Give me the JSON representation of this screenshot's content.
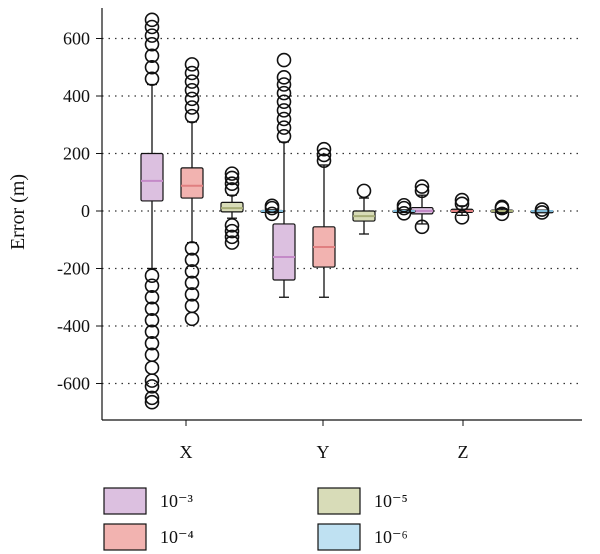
{
  "chart_data": {
    "type": "boxplot",
    "title": "",
    "ylabel": "Error (m)",
    "xlabel": "",
    "ylim": [
      -740,
      720
    ],
    "yticks": [
      600,
      400,
      200,
      0,
      -200,
      -400,
      -600
    ],
    "grid": "horizontal-dotted",
    "legend_position": "bottom",
    "categories": [
      "X",
      "Y",
      "Z"
    ],
    "series": [
      {
        "name": "10⁻³",
        "color": "#dcc0e0",
        "edge": "#c48ac8",
        "boxes": [
          {
            "category": "X",
            "whisker_low": -200,
            "q1": 35,
            "median": 105,
            "q3": 200,
            "whisker_high": 440,
            "outliers": [
              -665,
              -650,
              -610,
              -590,
              -545,
              -500,
              -460,
              -420,
              -380,
              -340,
              -300,
              -260,
              -225,
              460,
              500,
              540,
              580,
              610,
              640,
              665
            ]
          },
          {
            "category": "Y",
            "whisker_low": -300,
            "q1": -240,
            "median": -160,
            "q3": -45,
            "whisker_high": 240,
            "outliers": [
              260,
              290,
              320,
              350,
              380,
              410,
              440,
              465,
              525
            ]
          },
          {
            "category": "Z",
            "whisker_low": -45,
            "q1": -10,
            "median": 0,
            "q3": 12,
            "whisker_high": 55,
            "outliers": [
              -55,
              70,
              85
            ]
          }
        ]
      },
      {
        "name": "10⁻⁴",
        "color": "#f2b3b0",
        "edge": "#e07f80",
        "boxes": [
          {
            "category": "X",
            "whisker_low": -110,
            "q1": 45,
            "median": 88,
            "q3": 150,
            "whisker_high": 310,
            "outliers": [
              -375,
              -330,
              -290,
              -250,
              -210,
              -170,
              -130,
              330,
              360,
              390,
              420,
              450,
              480,
              510
            ]
          },
          {
            "category": "Y",
            "whisker_low": -300,
            "q1": -195,
            "median": -125,
            "q3": -55,
            "whisker_high": 160,
            "outliers": [
              175,
              195,
              215
            ]
          },
          {
            "category": "Z",
            "whisker_low": -15,
            "q1": -5,
            "median": 0,
            "q3": 6,
            "whisker_high": 18,
            "outliers": [
              -22,
              25,
              38
            ]
          }
        ]
      },
      {
        "name": "10⁻⁵",
        "color": "#d8dcb8",
        "edge": "#a8ae78",
        "boxes": [
          {
            "category": "X",
            "whisker_low": -25,
            "q1": -3,
            "median": 10,
            "q3": 30,
            "whisker_high": 55,
            "outliers": [
              -110,
              -90,
              -70,
              -50,
              75,
              95,
              115,
              130
            ]
          },
          {
            "category": "Y",
            "whisker_low": -80,
            "q1": -35,
            "median": -18,
            "q3": 0,
            "whisker_high": 45,
            "outliers": [
              70
            ]
          },
          {
            "category": "Z",
            "whisker_low": -8,
            "q1": -3,
            "median": 0,
            "q3": 3,
            "whisker_high": 8,
            "outliers": [
              -10,
              10,
              14
            ]
          }
        ]
      },
      {
        "name": "10⁻⁶",
        "color": "#bfe1f2",
        "edge": "#7fbad8",
        "boxes": [
          {
            "category": "X",
            "whisker_low": -4,
            "q1": -2,
            "median": 0,
            "q3": 2,
            "whisker_high": 4,
            "outliers": [
              -10,
              10,
              18
            ]
          },
          {
            "category": "Y",
            "whisker_low": -4,
            "q1": -2,
            "median": 0,
            "q3": 2,
            "whisker_high": 4,
            "outliers": [
              -8,
              10,
              20
            ]
          },
          {
            "category": "Z",
            "whisker_low": -3,
            "q1": -1,
            "median": 0,
            "q3": 1,
            "whisker_high": 3,
            "outliers": [
              -5,
              5
            ]
          }
        ]
      }
    ]
  }
}
